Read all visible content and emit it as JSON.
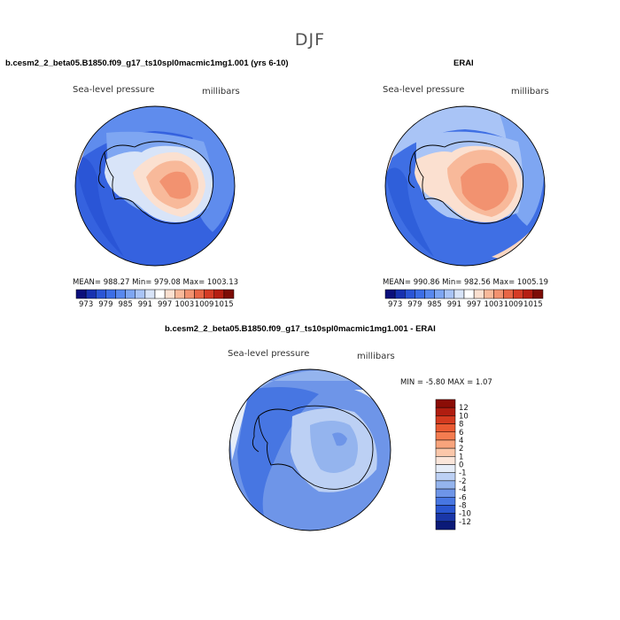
{
  "figure_title": "DJF",
  "chart_data": [
    {
      "type": "heatmap",
      "title": "b.cesm2_2_beta05.B1850.f09_g17_ts10spl0macmic1mg1.001 (yrs 6-10)",
      "left_label": "Sea-level pressure",
      "right_label": "millibars",
      "stats": {
        "mean": "988.27",
        "min": "979.08",
        "max": "1003.13"
      },
      "stats_text": "MEAN= 988.27   Min= 979.08   Max= 1003.13",
      "colorbar_ticks": [
        "973",
        "979",
        "985",
        "991",
        "997",
        "1003",
        "1009",
        "1015"
      ],
      "colorbar_colors": [
        "#0b0f7c",
        "#1731b0",
        "#2a55d6",
        "#3c6ee6",
        "#5888ee",
        "#7ea6f2",
        "#a9c4f6",
        "#d8e4f8",
        "#ffffff",
        "#fbe0d0",
        "#f8b99a",
        "#f29270",
        "#e86545",
        "#d53b25",
        "#b51e12",
        "#7d0c06"
      ]
    },
    {
      "type": "heatmap",
      "title": "ERAI",
      "left_label": "Sea-level pressure",
      "right_label": "millibars",
      "stats": {
        "mean": "990.86",
        "min": "982.56",
        "max": "1005.19"
      },
      "stats_text": "MEAN= 990.86   Min= 982.56   Max= 1005.19",
      "colorbar_ticks": [
        "973",
        "979",
        "985",
        "991",
        "997",
        "1003",
        "1009",
        "1015"
      ],
      "colorbar_colors": [
        "#0b0f7c",
        "#1731b0",
        "#2a55d6",
        "#3c6ee6",
        "#5888ee",
        "#7ea6f2",
        "#a9c4f6",
        "#d8e4f8",
        "#ffffff",
        "#fbe0d0",
        "#f8b99a",
        "#f29270",
        "#e86545",
        "#d53b25",
        "#b51e12",
        "#7d0c06"
      ]
    },
    {
      "type": "heatmap",
      "title": "b.cesm2_2_beta05.B1850.f09_g17_ts10spl0macmic1mg1.001 - ERAI",
      "left_label": "Sea-level pressure",
      "right_label": "millibars",
      "stats": {
        "min": "-5.80",
        "max": "1.07"
      },
      "stats_text": "MIN =   -5.80  MAX =    1.07",
      "colorbar_ticks": [
        "12",
        "10",
        "8",
        "6",
        "4",
        "2",
        "1",
        "0",
        "-1",
        "-2",
        "-4",
        "-6",
        "-8",
        "-10",
        "-12"
      ],
      "colorbar_colors": [
        "#8b0d06",
        "#b01d10",
        "#d43a1f",
        "#ea5a32",
        "#f47c50",
        "#f8a47c",
        "#fbc7aa",
        "#fbe6da",
        "#e6edf8",
        "#bcd0f4",
        "#94b4ee",
        "#6e95e8",
        "#4776e2",
        "#2a56d0",
        "#1a37a8",
        "#0b1a78"
      ]
    }
  ]
}
